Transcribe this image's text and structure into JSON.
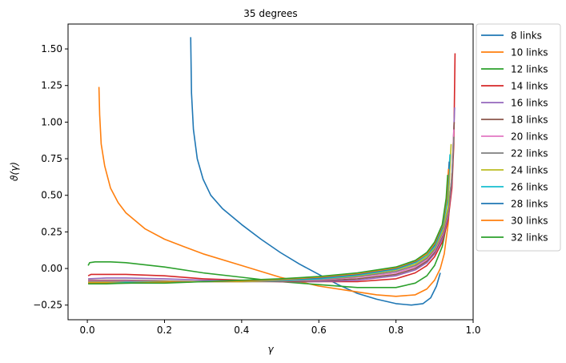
{
  "chart_data": {
    "type": "line",
    "title": "35 degrees",
    "xlabel": "γ",
    "ylabel": "ϑ(γ)",
    "xlim": [
      -0.05,
      1.0
    ],
    "ylim": [
      -0.35,
      1.67
    ],
    "xticks": [
      0.0,
      0.2,
      0.4,
      0.6,
      0.8,
      1.0
    ],
    "xtick_labels": [
      "0.0",
      "0.2",
      "0.4",
      "0.6",
      "0.8",
      "1.0"
    ],
    "yticks": [
      -0.25,
      0.0,
      0.25,
      0.5,
      0.75,
      1.0,
      1.25,
      1.5
    ],
    "ytick_labels": [
      "−0.25",
      "0.00",
      "0.25",
      "0.50",
      "0.75",
      "1.00",
      "1.25",
      "1.50"
    ],
    "grid": false,
    "legend_position": "outside-right-top",
    "series": [
      {
        "name": "8 links",
        "color": "#1f77b4",
        "x": [
          0.268,
          0.27,
          0.275,
          0.285,
          0.3,
          0.32,
          0.35,
          0.4,
          0.45,
          0.5,
          0.55,
          0.6,
          0.65,
          0.7,
          0.75,
          0.8,
          0.84,
          0.87,
          0.89,
          0.905,
          0.915
        ],
        "y": [
          1.58,
          1.2,
          0.95,
          0.75,
          0.61,
          0.5,
          0.41,
          0.3,
          0.2,
          0.11,
          0.03,
          -0.04,
          -0.11,
          -0.17,
          -0.21,
          -0.24,
          -0.25,
          -0.24,
          -0.2,
          -0.12,
          -0.03
        ]
      },
      {
        "name": "10 links",
        "color": "#ff7f0e",
        "x": [
          0.03,
          0.032,
          0.036,
          0.045,
          0.06,
          0.08,
          0.1,
          0.15,
          0.2,
          0.25,
          0.3,
          0.4,
          0.5,
          0.6,
          0.7,
          0.75,
          0.8,
          0.85,
          0.88,
          0.9,
          0.915,
          0.925,
          0.935,
          0.945
        ],
        "y": [
          1.24,
          1.05,
          0.85,
          0.7,
          0.55,
          0.45,
          0.38,
          0.27,
          0.2,
          0.15,
          0.1,
          0.02,
          -0.06,
          -0.12,
          -0.16,
          -0.18,
          -0.19,
          -0.18,
          -0.14,
          -0.08,
          0.0,
          0.1,
          0.3,
          0.65
        ]
      },
      {
        "name": "12 links",
        "color": "#2ca02c",
        "x": [
          0.002,
          0.006,
          0.02,
          0.06,
          0.1,
          0.2,
          0.3,
          0.4,
          0.5,
          0.6,
          0.7,
          0.8,
          0.85,
          0.88,
          0.9,
          0.92,
          0.935,
          0.945
        ],
        "y": [
          0.02,
          0.04,
          0.045,
          0.045,
          0.04,
          0.01,
          -0.03,
          -0.06,
          -0.09,
          -0.11,
          -0.13,
          -0.13,
          -0.1,
          -0.05,
          0.02,
          0.15,
          0.35,
          0.62
        ]
      },
      {
        "name": "14 links",
        "color": "#d62728",
        "x": [
          0.002,
          0.01,
          0.05,
          0.1,
          0.2,
          0.3,
          0.4,
          0.5,
          0.6,
          0.7,
          0.8,
          0.85,
          0.88,
          0.9,
          0.92,
          0.935,
          0.945,
          0.95,
          0.953
        ],
        "y": [
          -0.05,
          -0.04,
          -0.04,
          -0.04,
          -0.05,
          -0.07,
          -0.08,
          -0.09,
          -0.09,
          -0.09,
          -0.07,
          -0.03,
          0.02,
          0.08,
          0.18,
          0.33,
          0.55,
          0.85,
          1.47
        ]
      },
      {
        "name": "16 links",
        "color": "#9467bd",
        "x": [
          0.002,
          0.05,
          0.1,
          0.2,
          0.3,
          0.4,
          0.5,
          0.6,
          0.7,
          0.8,
          0.85,
          0.88,
          0.9,
          0.92,
          0.935,
          0.945,
          0.952
        ],
        "y": [
          -0.07,
          -0.065,
          -0.065,
          -0.07,
          -0.08,
          -0.085,
          -0.09,
          -0.09,
          -0.08,
          -0.05,
          -0.01,
          0.04,
          0.1,
          0.2,
          0.35,
          0.6,
          1.1
        ]
      },
      {
        "name": "18 links",
        "color": "#8c564b",
        "x": [
          0.002,
          0.05,
          0.1,
          0.2,
          0.3,
          0.4,
          0.5,
          0.6,
          0.7,
          0.8,
          0.85,
          0.88,
          0.9,
          0.92,
          0.935,
          0.945,
          0.951
        ],
        "y": [
          -0.08,
          -0.08,
          -0.08,
          -0.085,
          -0.09,
          -0.09,
          -0.09,
          -0.085,
          -0.07,
          -0.04,
          0.0,
          0.05,
          0.11,
          0.22,
          0.37,
          0.62,
          1.0
        ]
      },
      {
        "name": "20 links",
        "color": "#e377c2",
        "x": [
          0.002,
          0.05,
          0.1,
          0.2,
          0.3,
          0.4,
          0.5,
          0.6,
          0.7,
          0.8,
          0.85,
          0.88,
          0.9,
          0.92,
          0.935,
          0.945,
          0.95
        ],
        "y": [
          -0.085,
          -0.085,
          -0.085,
          -0.09,
          -0.09,
          -0.09,
          -0.085,
          -0.08,
          -0.06,
          -0.03,
          0.01,
          0.06,
          0.12,
          0.23,
          0.38,
          0.62,
          0.95
        ]
      },
      {
        "name": "22 links",
        "color": "#7f7f7f",
        "x": [
          0.002,
          0.05,
          0.1,
          0.2,
          0.3,
          0.4,
          0.5,
          0.6,
          0.7,
          0.8,
          0.85,
          0.88,
          0.9,
          0.92,
          0.935,
          0.945,
          0.95
        ],
        "y": [
          -0.09,
          -0.09,
          -0.09,
          -0.09,
          -0.09,
          -0.09,
          -0.085,
          -0.075,
          -0.055,
          -0.02,
          0.02,
          0.07,
          0.13,
          0.24,
          0.39,
          0.62,
          0.9
        ]
      },
      {
        "name": "24 links",
        "color": "#bcbd22",
        "x": [
          0.002,
          0.05,
          0.1,
          0.2,
          0.3,
          0.4,
          0.5,
          0.6,
          0.7,
          0.8,
          0.85,
          0.88,
          0.9,
          0.92,
          0.935,
          0.943
        ],
        "y": [
          -0.095,
          -0.095,
          -0.095,
          -0.09,
          -0.09,
          -0.09,
          -0.08,
          -0.07,
          -0.05,
          -0.01,
          0.03,
          0.08,
          0.14,
          0.25,
          0.42,
          0.85
        ]
      },
      {
        "name": "26 links",
        "color": "#17becf",
        "x": [
          0.002,
          0.05,
          0.1,
          0.2,
          0.3,
          0.4,
          0.5,
          0.6,
          0.7,
          0.8,
          0.85,
          0.88,
          0.9,
          0.92,
          0.933,
          0.94
        ],
        "y": [
          -0.1,
          -0.1,
          -0.095,
          -0.095,
          -0.09,
          -0.085,
          -0.08,
          -0.07,
          -0.045,
          -0.005,
          0.04,
          0.09,
          0.15,
          0.27,
          0.45,
          0.78
        ]
      },
      {
        "name": "28 links",
        "color": "#1f77b4",
        "x": [
          0.002,
          0.05,
          0.1,
          0.2,
          0.3,
          0.4,
          0.5,
          0.6,
          0.7,
          0.8,
          0.85,
          0.88,
          0.9,
          0.92,
          0.932,
          0.938
        ],
        "y": [
          -0.1,
          -0.1,
          -0.1,
          -0.095,
          -0.09,
          -0.085,
          -0.075,
          -0.065,
          -0.04,
          0.0,
          0.045,
          0.1,
          0.16,
          0.28,
          0.47,
          0.73
        ]
      },
      {
        "name": "30 links",
        "color": "#ff7f0e",
        "x": [
          0.002,
          0.05,
          0.1,
          0.2,
          0.3,
          0.4,
          0.5,
          0.6,
          0.7,
          0.8,
          0.85,
          0.88,
          0.9,
          0.92,
          0.932,
          0.936
        ],
        "y": [
          -0.1,
          -0.1,
          -0.1,
          -0.095,
          -0.09,
          -0.085,
          -0.075,
          -0.06,
          -0.035,
          0.005,
          0.05,
          0.1,
          0.17,
          0.29,
          0.48,
          0.68
        ]
      },
      {
        "name": "32 links",
        "color": "#2ca02c",
        "x": [
          0.002,
          0.05,
          0.1,
          0.2,
          0.3,
          0.4,
          0.5,
          0.6,
          0.7,
          0.8,
          0.85,
          0.88,
          0.9,
          0.92,
          0.93,
          0.934
        ],
        "y": [
          -0.105,
          -0.105,
          -0.1,
          -0.1,
          -0.09,
          -0.08,
          -0.07,
          -0.055,
          -0.03,
          0.01,
          0.055,
          0.11,
          0.18,
          0.3,
          0.48,
          0.64
        ]
      }
    ]
  }
}
